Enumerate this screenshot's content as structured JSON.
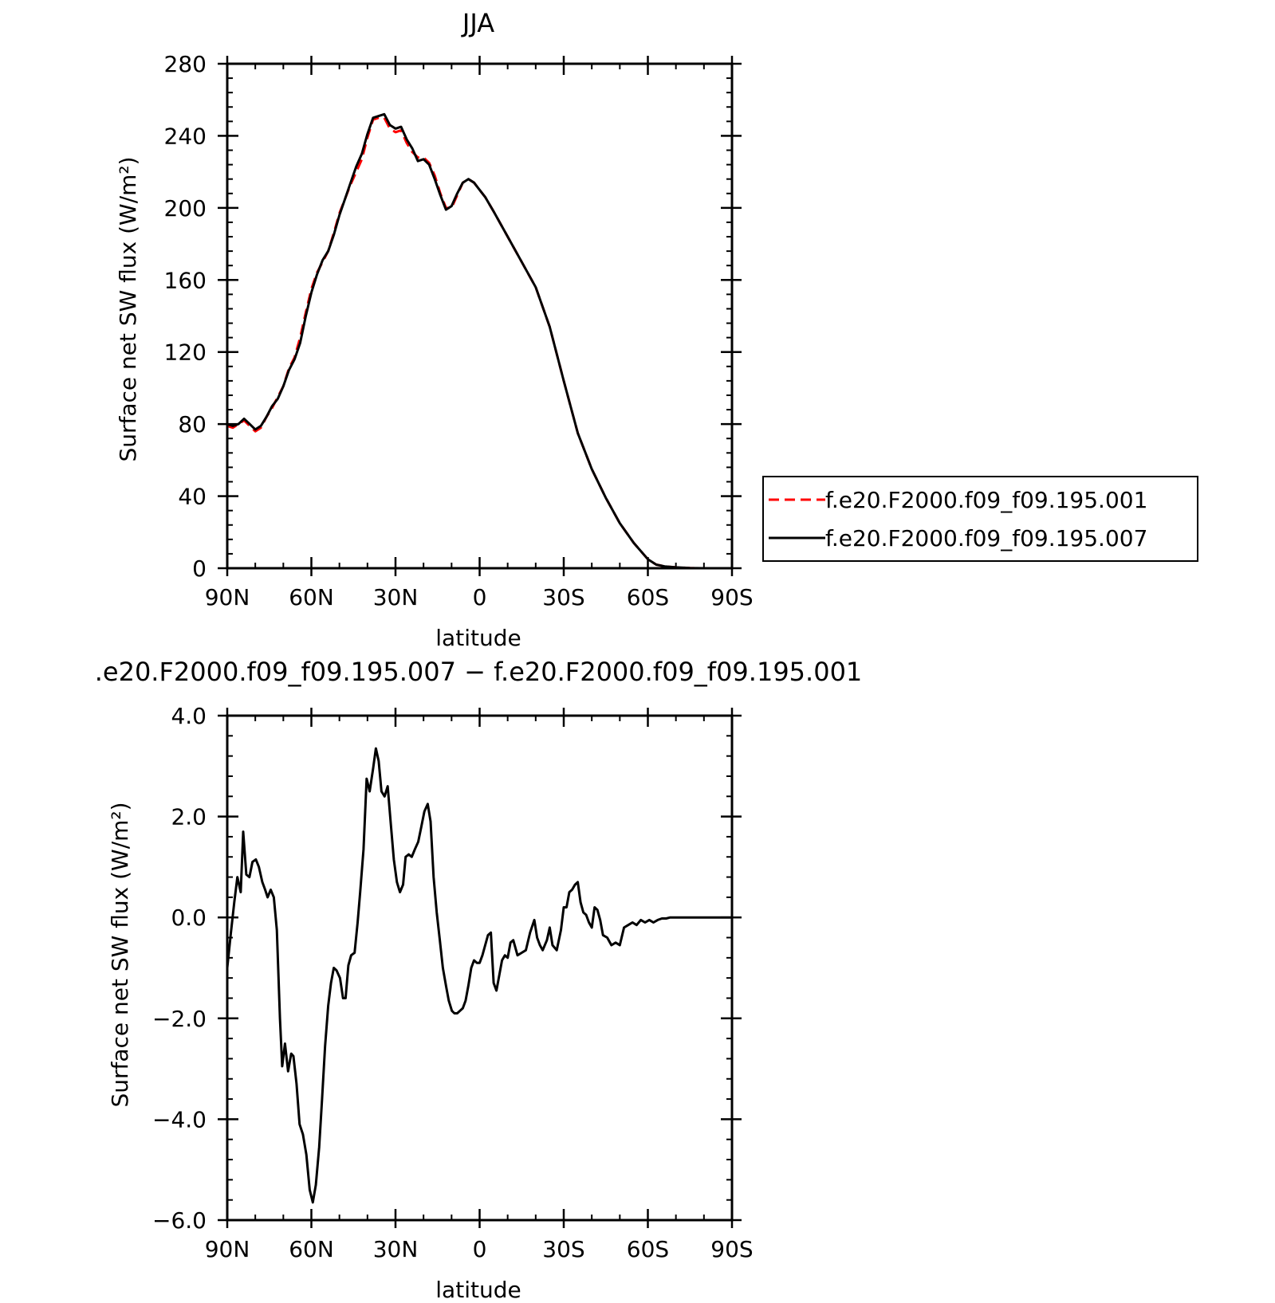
{
  "chart_data": [
    {
      "type": "line",
      "title": "JJA",
      "xlabel": "latitude",
      "ylabel": "Surface net SW flux (W/m²)",
      "xlim": [
        90,
        -90
      ],
      "ylim": [
        0,
        280
      ],
      "x_ticks": [
        90,
        60,
        30,
        0,
        -30,
        -60,
        -90
      ],
      "x_tick_labels": [
        "90N",
        "60N",
        "30N",
        "0",
        "30S",
        "60S",
        "90S"
      ],
      "y_ticks": [
        0,
        40,
        80,
        120,
        160,
        200,
        240,
        280
      ],
      "y_tick_labels": [
        "0",
        "40",
        "80",
        "120",
        "160",
        "200",
        "240",
        "280"
      ],
      "legend_position": "right",
      "series": [
        {
          "name": "f.e20.F2000.f09_f09.195.001",
          "color": "#ff0000",
          "dash": "dashed",
          "x": [
            90,
            88,
            86,
            84,
            82,
            80,
            78,
            76,
            74,
            72,
            70,
            68,
            66,
            64,
            62,
            60,
            58,
            56,
            54,
            52,
            50,
            48,
            46,
            44,
            42,
            40,
            38,
            36,
            34,
            32,
            30,
            28,
            26,
            24,
            22,
            20,
            18,
            16,
            14,
            12,
            10,
            8,
            6,
            4,
            2,
            0,
            -2,
            -5,
            -10,
            -15,
            -20,
            -25,
            -30,
            -35,
            -40,
            -45,
            -50,
            -55,
            -60,
            -63,
            -66,
            -70,
            -75,
            -80,
            -85,
            -90
          ],
          "values": [
            79,
            78,
            80,
            82,
            79,
            76,
            78,
            84,
            89,
            95,
            101,
            111,
            117,
            128,
            142,
            155,
            164,
            170,
            176,
            186,
            197,
            205,
            213,
            220,
            227,
            239,
            249,
            250,
            250,
            244,
            242,
            243,
            236,
            231,
            228,
            228,
            225,
            218,
            208,
            200,
            200,
            207,
            214,
            216,
            214,
            210,
            206,
            198,
            184,
            170,
            156,
            134,
            104,
            75,
            55,
            39,
            25,
            14,
            5,
            2,
            1,
            0.5,
            0.1,
            0,
            0,
            0
          ]
        },
        {
          "name": "f.e20.F2000.f09_f09.195.007",
          "color": "#000000",
          "dash": "solid",
          "x": [
            90,
            88,
            86,
            84,
            82,
            80,
            78,
            76,
            74,
            72,
            70,
            68,
            66,
            64,
            62,
            60,
            58,
            56,
            54,
            52,
            50,
            48,
            46,
            44,
            42,
            40,
            38,
            36,
            34,
            32,
            30,
            28,
            26,
            24,
            22,
            20,
            18,
            16,
            14,
            12,
            10,
            8,
            6,
            4,
            2,
            0,
            -2,
            -5,
            -10,
            -15,
            -20,
            -25,
            -30,
            -35,
            -40,
            -45,
            -50,
            -55,
            -60,
            -63,
            -66,
            -70,
            -75,
            -80,
            -85,
            -90
          ],
          "values": [
            80,
            79,
            80,
            83,
            80,
            77,
            79,
            84,
            90,
            94,
            101,
            110,
            116,
            125,
            140,
            153,
            163,
            171,
            176,
            185,
            196,
            205,
            214,
            223,
            230,
            241,
            250,
            251,
            252,
            246,
            244,
            245,
            238,
            233,
            226,
            227,
            224,
            216,
            207,
            199,
            201,
            208,
            214,
            216,
            214,
            210,
            206,
            198,
            184,
            170,
            156,
            134,
            104,
            75,
            55,
            39,
            25,
            14,
            5,
            2,
            1,
            0.5,
            0.1,
            0,
            0,
            0
          ]
        }
      ]
    },
    {
      "type": "line",
      "title": ".e20.F2000.f09_f09.195.007 − f.e20.F2000.f09_f09.195.001",
      "xlabel": "latitude",
      "ylabel": "Surface net SW flux (W/m²)",
      "xlim": [
        90,
        -90
      ],
      "ylim": [
        -6,
        4
      ],
      "x_ticks": [
        90,
        60,
        30,
        0,
        -30,
        -60,
        -90
      ],
      "x_tick_labels": [
        "90N",
        "60N",
        "30N",
        "0",
        "30S",
        "60S",
        "90S"
      ],
      "y_ticks": [
        4,
        2,
        0,
        -2,
        -4,
        -6
      ],
      "y_tick_labels": [
        "4.0",
        "2.0",
        "0.0",
        "−2.0",
        "−4.0",
        "−6.0"
      ],
      "series": [
        {
          "color": "#000000",
          "dash": "solid",
          "x": [
            90,
            88.7,
            87.5,
            86.4,
            85.2,
            84.3,
            83.2,
            82.1,
            81.0,
            79.8,
            78.7,
            77.5,
            76.5,
            75.6,
            74.5,
            73.4,
            72.3,
            71.2,
            70.4,
            69.4,
            68.3,
            67.2,
            66.4,
            65.3,
            64.2,
            63.0,
            61.8,
            60.6,
            59.5,
            58.4,
            57.2,
            56.2,
            55.1,
            54.0,
            53.0,
            52.0,
            51.0,
            49.8,
            48.7,
            47.8,
            46.8,
            45.8,
            44.6,
            43.5,
            42.6,
            41.4,
            40.3,
            39.2,
            38.0,
            37.0,
            36.0,
            35.0,
            33.9,
            32.8,
            31.6,
            30.6,
            29.5,
            28.4,
            27.3,
            26.4,
            25.3,
            24.2,
            23.1,
            21.9,
            20.8,
            19.7,
            18.5,
            17.5,
            16.4,
            15.3,
            14.2,
            13.1,
            12.0,
            11.0,
            9.9,
            9.0,
            8.0,
            7.0,
            6.0,
            5.0,
            4.0,
            3.0,
            2.0,
            1.0,
            0.0,
            -1.0,
            -2.0,
            -3.0,
            -4.0,
            -5.0,
            -6.0,
            -7.0,
            -8.0,
            -9.0,
            -10.0,
            -11.0,
            -12.0,
            -13.5,
            -15.0,
            -16.5,
            -18.0,
            -19.5,
            -20.5,
            -21.5,
            -22.5,
            -24.0,
            -25.0,
            -26.0,
            -27.5,
            -29.0,
            -30.0,
            -31.0,
            -32.0,
            -33.0,
            -34.0,
            -35.0,
            -36.0,
            -37.0,
            -38.0,
            -39.0,
            -40.0,
            -41.0,
            -42.0,
            -43.0,
            -44.0,
            -45.5,
            -47.0,
            -48.5,
            -50.0,
            -51.5,
            -53.0,
            -54.5,
            -56.0,
            -57.5,
            -59.0,
            -60.5,
            -62.0,
            -63.5,
            -65.0,
            -66.5,
            -68.0,
            -72.0,
            -76.0,
            -80.0,
            -85.0,
            -90.0
          ],
          "values": [
            -1.0,
            -0.3,
            0.3,
            0.8,
            0.5,
            1.7,
            0.85,
            0.8,
            1.1,
            1.15,
            1.0,
            0.7,
            0.55,
            0.4,
            0.55,
            0.4,
            -0.25,
            -2.0,
            -2.95,
            -2.5,
            -3.05,
            -2.7,
            -2.75,
            -3.3,
            -4.1,
            -4.3,
            -4.7,
            -5.4,
            -5.65,
            -5.3,
            -4.55,
            -3.6,
            -2.55,
            -1.75,
            -1.3,
            -1.0,
            -1.05,
            -1.2,
            -1.6,
            -1.6,
            -0.95,
            -0.75,
            -0.7,
            -0.1,
            0.5,
            1.35,
            2.75,
            2.5,
            2.95,
            3.35,
            3.1,
            2.5,
            2.4,
            2.6,
            1.8,
            1.15,
            0.7,
            0.5,
            0.65,
            1.2,
            1.25,
            1.2,
            1.35,
            1.5,
            1.8,
            2.1,
            2.25,
            1.9,
            0.8,
            0.1,
            -0.45,
            -1.0,
            -1.35,
            -1.65,
            -1.85,
            -1.9,
            -1.9,
            -1.85,
            -1.8,
            -1.65,
            -1.35,
            -1.0,
            -0.85,
            -0.9,
            -0.9,
            -0.75,
            -0.55,
            -0.35,
            -0.3,
            -1.3,
            -1.45,
            -1.15,
            -0.85,
            -0.75,
            -0.8,
            -0.5,
            -0.45,
            -0.75,
            -0.7,
            -0.65,
            -0.3,
            -0.05,
            -0.4,
            -0.55,
            -0.65,
            -0.45,
            -0.2,
            -0.55,
            -0.65,
            -0.25,
            0.2,
            0.2,
            0.5,
            0.55,
            0.65,
            0.7,
            0.3,
            0.1,
            0.05,
            -0.1,
            -0.2,
            0.2,
            0.15,
            -0.05,
            -0.35,
            -0.4,
            -0.55,
            -0.5,
            -0.55,
            -0.2,
            -0.15,
            -0.1,
            -0.15,
            -0.05,
            -0.1,
            -0.05,
            -0.1,
            -0.05,
            -0.02,
            -0.02,
            0.0,
            0.0,
            0.0,
            0.0,
            0.0,
            0.0
          ]
        }
      ]
    }
  ]
}
